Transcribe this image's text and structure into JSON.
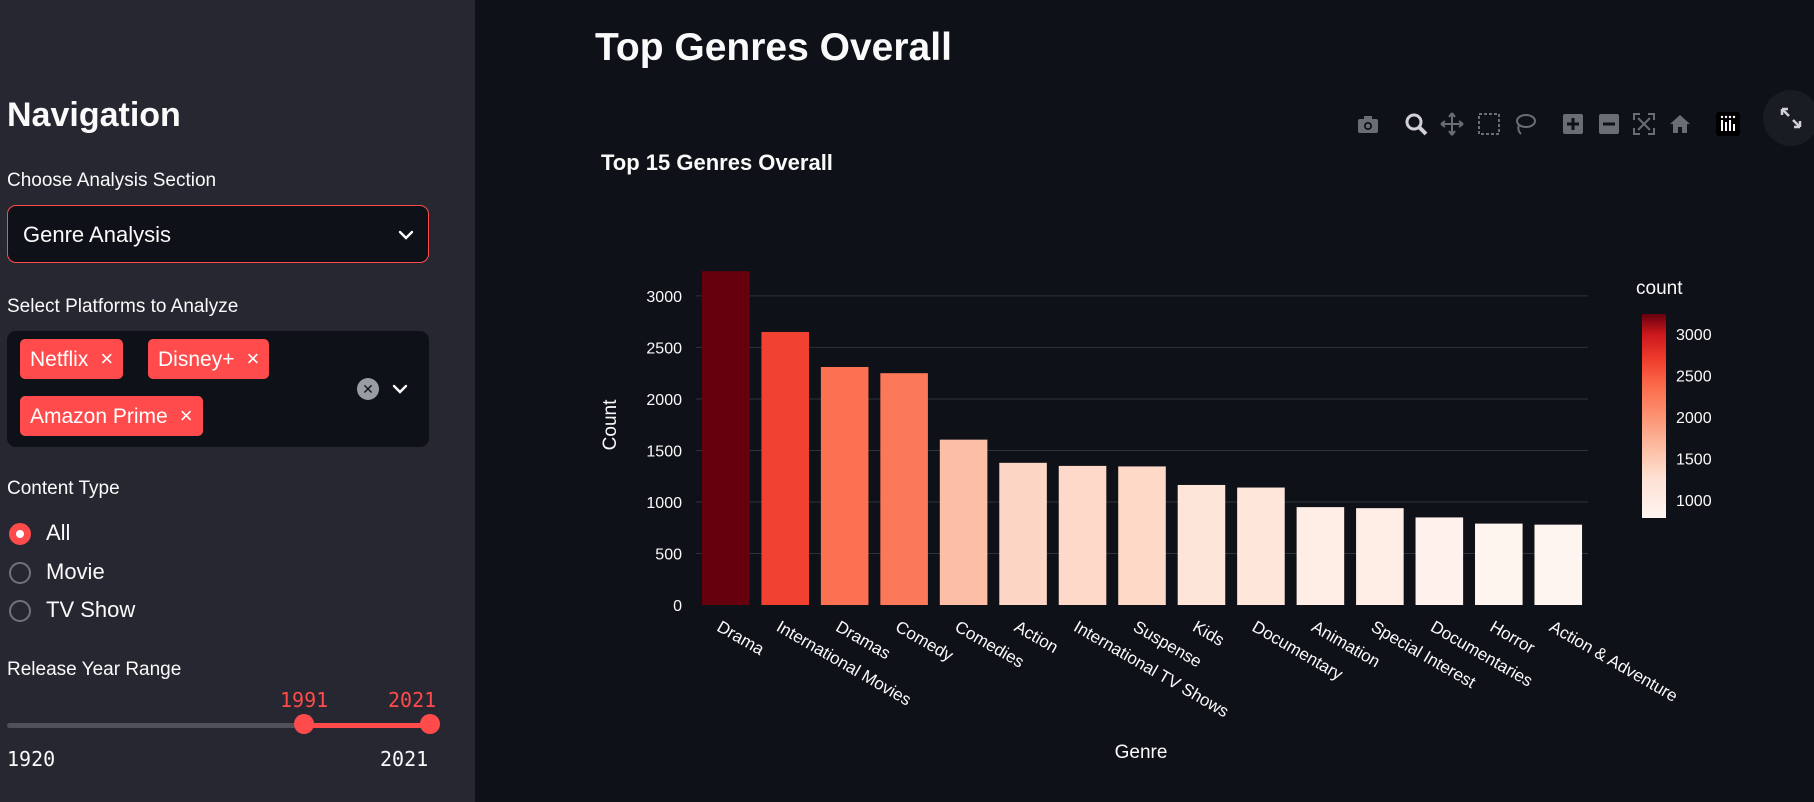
{
  "sidebar": {
    "title": "Navigation",
    "section_label": "Choose Analysis Section",
    "section_value": "Genre Analysis",
    "platforms_label": "Select Platforms to Analyze",
    "platforms": [
      {
        "label": "Netflix",
        "remove": "×"
      },
      {
        "label": "Disney+",
        "remove": "×"
      },
      {
        "label": "Amazon Prime",
        "remove": "×"
      }
    ],
    "content_type_label": "Content Type",
    "content_types": [
      "All",
      "Movie",
      "TV Show"
    ],
    "selected_content_type": "All",
    "year_label": "Release Year Range",
    "year_min": "1920",
    "year_max": "2021",
    "year_from": "1991",
    "year_to": "2021"
  },
  "main": {
    "title": "Top Genres Overall"
  },
  "colors": {
    "accent": "#ff4b4b",
    "background": "#0e1117",
    "sidebar": "#262730"
  },
  "toolbar_icons": [
    "camera-icon",
    "zoom-icon",
    "pan-icon",
    "box-select-icon",
    "lasso-icon",
    "zoom-in-icon",
    "zoom-out-icon",
    "autoscale-icon",
    "reset-axes-icon",
    "plotly-logo-icon"
  ],
  "chart_data": {
    "type": "bar",
    "title": "Top 15 Genres Overall",
    "xlabel": "Genre",
    "ylabel": "Count",
    "categories": [
      "Drama",
      "International Movies",
      "Dramas",
      "Comedy",
      "Comedies",
      "Action",
      "International TV Shows",
      "Suspense",
      "Kids",
      "Documentary",
      "Animation",
      "Special Interest",
      "Documentaries",
      "Horror",
      "Action & Adventure"
    ],
    "values": [
      3240,
      2650,
      2310,
      2250,
      1605,
      1380,
      1350,
      1345,
      1165,
      1140,
      950,
      940,
      850,
      790,
      780
    ],
    "ylim": [
      0,
      3300
    ],
    "yticks": [
      0,
      500,
      1000,
      1500,
      2000,
      2500,
      3000
    ],
    "colorbar": {
      "title": "count",
      "ticks": [
        1000,
        1500,
        2000,
        2500,
        3000
      ],
      "range": [
        780,
        3240
      ],
      "colorscale": "Reds"
    },
    "grid": true
  }
}
